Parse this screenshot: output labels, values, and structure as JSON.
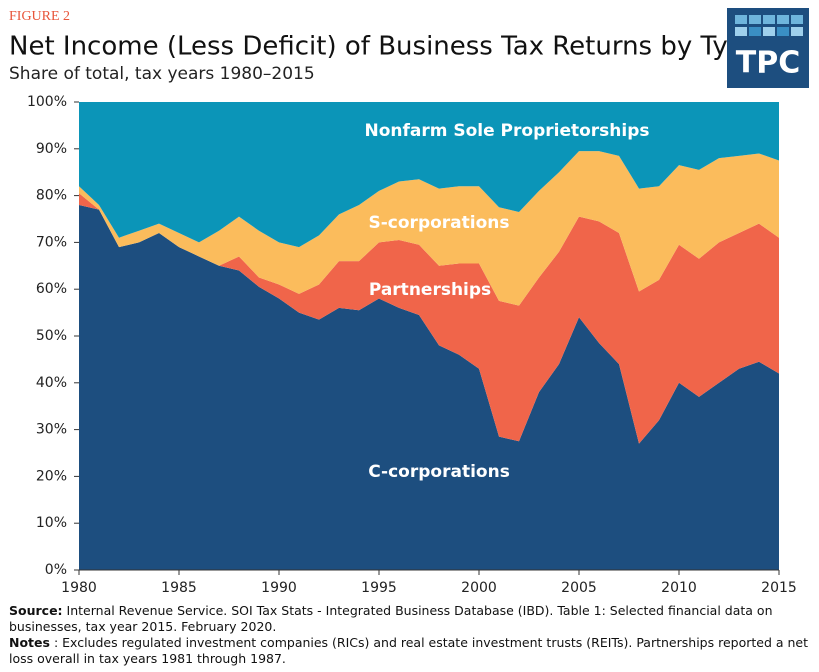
{
  "logo": "TPC",
  "chart_data": {
    "type": "stacked-area",
    "figure_label": "FIGURE 2",
    "title": "Net Income (Less Deficit) of Business Tax Returns by Type",
    "subtitle": "Share of total, tax years 1980–2015",
    "x": [
      1980,
      1981,
      1982,
      1983,
      1984,
      1985,
      1986,
      1987,
      1988,
      1989,
      1990,
      1991,
      1992,
      1993,
      1994,
      1995,
      1996,
      1997,
      1998,
      1999,
      2000,
      2001,
      2002,
      2003,
      2004,
      2005,
      2006,
      2007,
      2008,
      2009,
      2010,
      2011,
      2012,
      2013,
      2014,
      2015
    ],
    "series": [
      {
        "name": "C-corporations",
        "color": "#1d4e7f",
        "values": [
          78,
          77,
          69,
          70,
          72,
          69,
          67,
          65,
          64,
          60.5,
          58,
          55,
          53.5,
          56,
          55.5,
          58,
          56,
          54.5,
          48,
          46,
          43,
          28.5,
          27.5,
          38,
          44,
          54,
          48.5,
          44,
          27,
          32,
          40,
          37,
          40,
          43,
          44.5,
          42
        ]
      },
      {
        "name": "Partnerships",
        "color": "#f0654a",
        "values": [
          2.5,
          0,
          0,
          0,
          0,
          0,
          0,
          0,
          3,
          2,
          3,
          4,
          7.5,
          10,
          10.5,
          12,
          14.5,
          15,
          17,
          19.5,
          22.5,
          29,
          29,
          24.5,
          24,
          21.5,
          26,
          28,
          32.5,
          30,
          29.5,
          29.5,
          30,
          29,
          29.5,
          29
        ]
      },
      {
        "name": "S-corporations",
        "color": "#fbbc5c",
        "values": [
          1.5,
          1,
          2,
          2.5,
          2,
          3,
          3,
          7.5,
          8.5,
          10,
          9,
          10,
          10.5,
          10,
          12,
          11,
          12.5,
          14,
          16.5,
          16.5,
          16.5,
          20,
          20,
          18.5,
          17,
          14,
          15,
          16.5,
          22,
          20,
          17,
          19,
          18,
          16.5,
          15,
          16.5
        ]
      },
      {
        "name": "Nonfarm Sole Proprietorships",
        "color": "#0b95b8",
        "values": [
          18,
          22,
          29,
          27.5,
          26,
          28,
          30,
          27.5,
          24.5,
          27.5,
          30,
          31,
          28.5,
          24,
          22,
          19,
          17,
          16.5,
          18.5,
          18,
          18,
          22.5,
          23.5,
          19,
          15,
          10.5,
          10.5,
          11.5,
          18.5,
          18,
          13.5,
          14.5,
          12,
          11.5,
          11,
          12.5
        ]
      }
    ],
    "xlim": [
      1980,
      2015
    ],
    "xticks": [
      1980,
      1985,
      1990,
      1995,
      2000,
      2005,
      2010,
      2015
    ],
    "ylim": [
      0,
      100
    ],
    "yticks": [
      {
        "value": 0,
        "label": "0%"
      },
      {
        "value": 10,
        "label": "10%"
      },
      {
        "value": 20,
        "label": "20%"
      },
      {
        "value": 30,
        "label": "30%"
      },
      {
        "value": 40,
        "label": "40%"
      },
      {
        "value": 50,
        "label": "50%"
      },
      {
        "value": 60,
        "label": "60%"
      },
      {
        "value": 70,
        "label": "70%"
      },
      {
        "value": 80,
        "label": "80%"
      },
      {
        "value": 90,
        "label": "90%"
      },
      {
        "value": 100,
        "label": "100%"
      }
    ],
    "source_label": "Source:",
    "source_text": "Internal Revenue Service. SOI Tax Stats - Integrated Business Database (IBD). Table 1: Selected financial data on businesses, tax year 2015. February 2020.",
    "notes_label": "Notes",
    "notes_text": ": Excludes regulated investment companies (RICs) and real estate investment trusts (REITs). Partnerships reported a net loss overall in tax years 1981 through 1987."
  }
}
